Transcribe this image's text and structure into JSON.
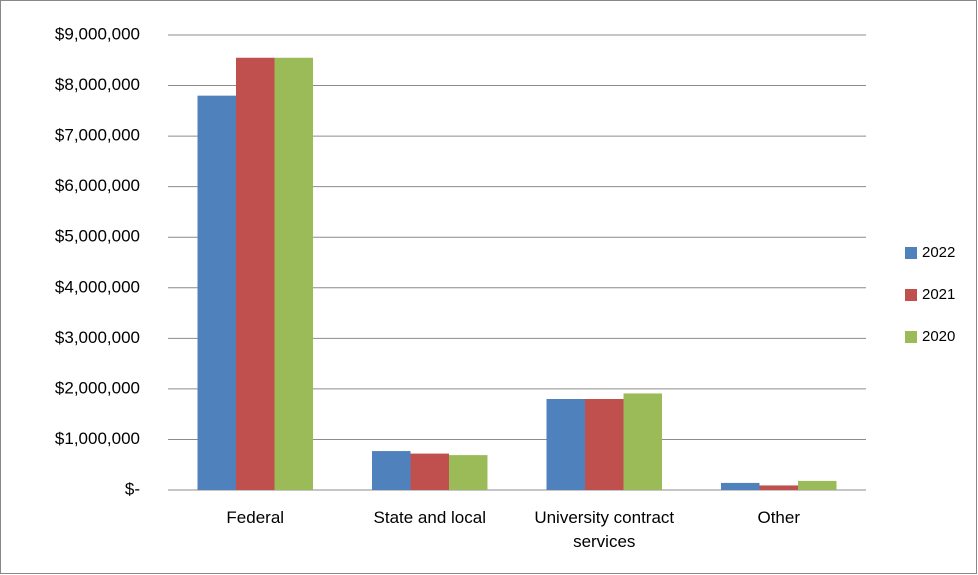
{
  "chart_data": {
    "type": "bar",
    "categories": [
      "Federal",
      "State and local",
      "University contract services",
      "Other"
    ],
    "series": [
      {
        "name": "2022",
        "color": "#4f81bd",
        "values": [
          7800000,
          770000,
          1800000,
          140000
        ]
      },
      {
        "name": "2021",
        "color": "#c0504d",
        "values": [
          8550000,
          720000,
          1800000,
          90000
        ]
      },
      {
        "name": "2020",
        "color": "#9bbb59",
        "values": [
          8550000,
          690000,
          1910000,
          180000
        ]
      }
    ],
    "ylim": [
      0,
      9000000
    ],
    "yticks": [
      {
        "value": 0,
        "label": "$-"
      },
      {
        "value": 1000000,
        "label": "$1,000,000"
      },
      {
        "value": 2000000,
        "label": "$2,000,000"
      },
      {
        "value": 3000000,
        "label": "$3,000,000"
      },
      {
        "value": 4000000,
        "label": "$4,000,000"
      },
      {
        "value": 5000000,
        "label": "$5,000,000"
      },
      {
        "value": 6000000,
        "label": "$6,000,000"
      },
      {
        "value": 7000000,
        "label": "$7,000,000"
      },
      {
        "value": 8000000,
        "label": "$8,000,000"
      },
      {
        "value": 9000000,
        "label": "$9,000,000"
      }
    ],
    "grid": true,
    "legend": "right"
  }
}
